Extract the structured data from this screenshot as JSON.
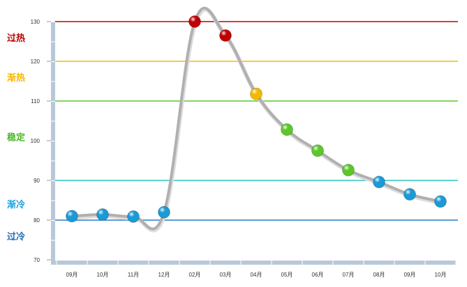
{
  "chart_data": {
    "type": "line",
    "title": "",
    "xlabel": "",
    "ylabel": "",
    "ylim": [
      70,
      130
    ],
    "yticks": [
      70,
      80,
      90,
      100,
      110,
      120,
      130
    ],
    "categories": [
      "09月",
      "10月",
      "11月",
      "12月",
      "02月",
      "03月",
      "04月",
      "05月",
      "06月",
      "07月",
      "08月",
      "09月",
      "10月"
    ],
    "values": [
      81,
      81.4,
      80.9,
      82,
      130,
      126.5,
      111.8,
      102.8,
      97.5,
      92.6,
      89.6,
      86.5,
      84.7
    ],
    "threshold_lines": [
      {
        "value": 130,
        "color": "#c00000"
      },
      {
        "value": 120,
        "color": "#f5b800"
      },
      {
        "value": 110,
        "color": "#5cc72a"
      },
      {
        "value": 90,
        "color": "#2ec4c4"
      },
      {
        "value": 80,
        "color": "#2a7cc7"
      }
    ],
    "zones": [
      {
        "label": "过热",
        "value": 126,
        "color": "#c00000"
      },
      {
        "label": "渐热",
        "value": 116,
        "color": "#f5b800"
      },
      {
        "label": "稳定",
        "value": 101,
        "color": "#4cb82a"
      },
      {
        "label": "渐冷",
        "value": 84,
        "color": "#1aa0e0"
      },
      {
        "label": "过冷",
        "value": 76,
        "color": "#1f6fb5"
      }
    ],
    "point_colors": {
      "overheat": "#c00000",
      "warm": "#f5b800",
      "stable": "#5cc72a",
      "cool": "#1a9ad6"
    },
    "line_color": "#b0b0b0",
    "axis_color": "#b8c8d8",
    "grid": false
  }
}
